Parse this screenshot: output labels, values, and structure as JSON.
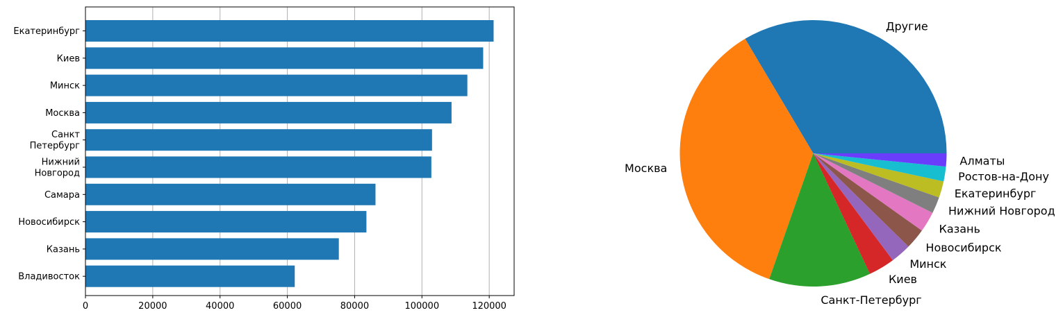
{
  "chart_data": [
    {
      "type": "bar",
      "orientation": "horizontal",
      "categories": [
        "Екатеринбург",
        "Киев",
        "Минск",
        "Москва",
        "Санкт\nПетербург",
        "Нижний\nНовгород",
        "Самара",
        "Новосибирск",
        "Казань",
        "Владивосток"
      ],
      "values": [
        121300,
        118200,
        113500,
        108800,
        103000,
        102800,
        86200,
        83500,
        75300,
        62200
      ],
      "title": "",
      "xlabel": "",
      "ylabel": "",
      "xlim": [
        0,
        127400
      ],
      "xticks": [
        0,
        20000,
        40000,
        60000,
        80000,
        100000,
        120000
      ],
      "grid": "x",
      "bar_color": "#1f77b4"
    },
    {
      "type": "pie",
      "title": "",
      "labels": [
        "Другие",
        "Москва",
        "Санкт-Петербург",
        "Киев",
        "Минск",
        "Новосибирск",
        "Казань",
        "Нижний Новгород",
        "Екатеринбург",
        "Ростов-на-Дону",
        "Алматы"
      ],
      "values": [
        33.7,
        36.3,
        12.4,
        3.2,
        2.5,
        2.5,
        2.5,
        2.0,
        2.0,
        1.8,
        1.6
      ],
      "colors": [
        "#1f77b4",
        "#ff7f0e",
        "#2ca02c",
        "#d62728",
        "#9467bd",
        "#8c564b",
        "#e377c2",
        "#7f7f7f",
        "#bcbd22",
        "#17becf",
        "#6a3dfc"
      ],
      "start_angle": 0,
      "direction": "counterclockwise"
    }
  ]
}
